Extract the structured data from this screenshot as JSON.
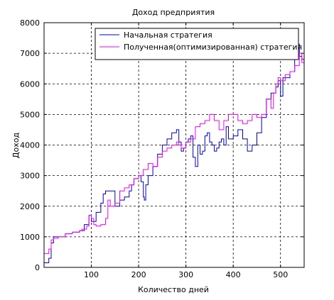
{
  "chart_data": {
    "type": "line",
    "title": "Доход предприятия",
    "xlabel": "Количество дней",
    "ylabel": "Доход",
    "xlim": [
      0,
      550
    ],
    "ylim": [
      0,
      8000
    ],
    "xticks": [
      100,
      200,
      300,
      400,
      500
    ],
    "yticks": [
      0,
      1000,
      2000,
      3000,
      4000,
      5000,
      6000,
      7000,
      8000
    ],
    "grid": true,
    "legend_position": "top-right",
    "series": [
      {
        "name": "Начальная стратегия",
        "color": "#0000cc",
        "step": true,
        "x": [
          0,
          10,
          15,
          20,
          30,
          45,
          60,
          75,
          85,
          95,
          100,
          110,
          120,
          125,
          130,
          140,
          150,
          155,
          160,
          170,
          180,
          185,
          190,
          195,
          200,
          205,
          210,
          212,
          215,
          220,
          230,
          240,
          250,
          260,
          270,
          280,
          285,
          290,
          295,
          300,
          305,
          310,
          315,
          320,
          325,
          330,
          335,
          340,
          345,
          350,
          355,
          360,
          365,
          370,
          375,
          380,
          385,
          390,
          400,
          410,
          420,
          430,
          440,
          450,
          460,
          470,
          480,
          490,
          495,
          500,
          505,
          510,
          520,
          530,
          535,
          540,
          545,
          550
        ],
        "y": [
          150,
          300,
          800,
          1000,
          1000,
          1100,
          1150,
          1200,
          1400,
          1700,
          1500,
          1800,
          2100,
          2400,
          2500,
          2500,
          2000,
          2000,
          2200,
          2300,
          2500,
          2700,
          2900,
          2900,
          3000,
          2800,
          2300,
          2200,
          2700,
          3000,
          3300,
          3700,
          4000,
          4200,
          4400,
          4500,
          4100,
          3800,
          3900,
          4100,
          4200,
          4300,
          3600,
          3300,
          4000,
          3700,
          3800,
          4300,
          4400,
          4100,
          4000,
          3800,
          3900,
          4100,
          4200,
          4000,
          4600,
          4200,
          4300,
          4500,
          4200,
          3800,
          4000,
          4400,
          4900,
          5500,
          5700,
          5900,
          6100,
          5600,
          6200,
          6200,
          6400,
          6900,
          7300,
          6900,
          6800,
          6800
        ]
      },
      {
        "name": "Полученная(оптимизированная) стратегия",
        "color": "#ff00ff",
        "step": true,
        "x": [
          0,
          10,
          15,
          20,
          30,
          45,
          60,
          75,
          80,
          90,
          95,
          100,
          105,
          110,
          120,
          130,
          135,
          140,
          150,
          160,
          170,
          180,
          190,
          200,
          210,
          220,
          230,
          240,
          250,
          260,
          270,
          280,
          285,
          290,
          300,
          310,
          320,
          330,
          340,
          350,
          360,
          370,
          380,
          390,
          400,
          410,
          420,
          430,
          440,
          450,
          460,
          470,
          480,
          485,
          490,
          495,
          500,
          505,
          510,
          520,
          530,
          535,
          540,
          545,
          550
        ],
        "y": [
          450,
          600,
          900,
          950,
          1000,
          1100,
          1150,
          1200,
          1250,
          1350,
          1700,
          1600,
          1400,
          1350,
          1400,
          1600,
          2200,
          2000,
          2100,
          2500,
          2600,
          2700,
          2900,
          3000,
          3200,
          3400,
          3300,
          3600,
          3800,
          3900,
          4000,
          4100,
          4000,
          3900,
          4100,
          4200,
          4600,
          4700,
          4800,
          5000,
          4800,
          4500,
          4800,
          5000,
          5000,
          4800,
          4700,
          4800,
          5000,
          4900,
          5000,
          5500,
          5200,
          5700,
          6000,
          6200,
          6100,
          6100,
          6300,
          6400,
          6600,
          6600,
          7000,
          6700,
          6700
        ]
      }
    ]
  }
}
